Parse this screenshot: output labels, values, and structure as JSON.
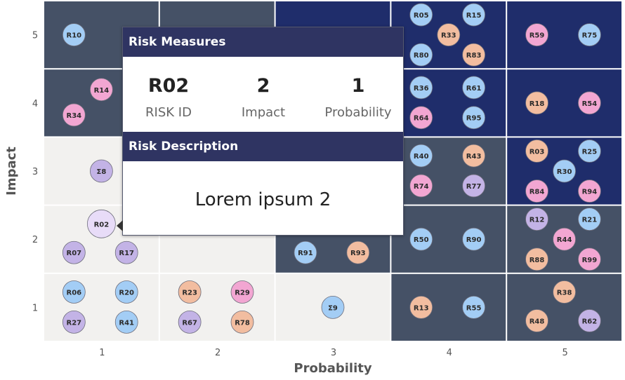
{
  "chart_data": {
    "type": "heatmap",
    "xlabel": "Probability",
    "ylabel": "Impact",
    "x_ticks": [
      "1",
      "2",
      "3",
      "4",
      "5"
    ],
    "y_ticks": [
      "1",
      "2",
      "3",
      "4",
      "5"
    ],
    "colors": {
      "light": "#f2f1ef",
      "slate": "#455166",
      "navy": "#1f2d6b",
      "blue": "#a3cdf5",
      "pink": "#f2a6d2",
      "orange": "#f2bda0",
      "purple": "#c3b3e6",
      "selected": "#e8dcf8"
    },
    "cells": [
      {
        "probability": 1,
        "impact": 5,
        "shade": "slate",
        "risks": [
          {
            "id": "R10",
            "color": "blue"
          }
        ]
      },
      {
        "probability": 2,
        "impact": 5,
        "shade": "slate",
        "risks": []
      },
      {
        "probability": 3,
        "impact": 5,
        "shade": "navy",
        "risks": []
      },
      {
        "probability": 4,
        "impact": 5,
        "shade": "navy",
        "risks": [
          {
            "id": "R05",
            "color": "blue"
          },
          {
            "id": "R15",
            "color": "blue"
          },
          {
            "id": "R33",
            "color": "orange"
          },
          {
            "id": "R80",
            "color": "blue"
          },
          {
            "id": "R83",
            "color": "orange"
          }
        ]
      },
      {
        "probability": 5,
        "impact": 5,
        "shade": "navy",
        "risks": [
          {
            "id": "R59",
            "color": "pink"
          },
          {
            "id": "R75",
            "color": "blue"
          }
        ]
      },
      {
        "probability": 1,
        "impact": 4,
        "shade": "slate",
        "risks": [
          {
            "id": "R14",
            "color": "pink"
          },
          {
            "id": "R34",
            "color": "pink"
          }
        ]
      },
      {
        "probability": 2,
        "impact": 4,
        "shade": "slate",
        "risks": []
      },
      {
        "probability": 3,
        "impact": 4,
        "shade": "navy",
        "risks": []
      },
      {
        "probability": 4,
        "impact": 4,
        "shade": "navy",
        "risks": [
          {
            "id": "R36",
            "color": "blue"
          },
          {
            "id": "R61",
            "color": "blue"
          },
          {
            "id": "R64",
            "color": "pink"
          },
          {
            "id": "R95",
            "color": "blue"
          }
        ]
      },
      {
        "probability": 5,
        "impact": 4,
        "shade": "navy",
        "risks": [
          {
            "id": "R18",
            "color": "orange"
          },
          {
            "id": "R54",
            "color": "pink"
          }
        ]
      },
      {
        "probability": 1,
        "impact": 3,
        "shade": "light",
        "risks": [
          {
            "id": "Σ8",
            "color": "purple"
          }
        ]
      },
      {
        "probability": 2,
        "impact": 3,
        "shade": "light",
        "risks": []
      },
      {
        "probability": 3,
        "impact": 3,
        "shade": "slate",
        "risks": []
      },
      {
        "probability": 4,
        "impact": 3,
        "shade": "slate",
        "risks": [
          {
            "id": "R40",
            "color": "blue"
          },
          {
            "id": "R43",
            "color": "orange"
          },
          {
            "id": "R74",
            "color": "pink"
          },
          {
            "id": "R77",
            "color": "purple"
          }
        ]
      },
      {
        "probability": 5,
        "impact": 3,
        "shade": "navy",
        "risks": [
          {
            "id": "R03",
            "color": "orange"
          },
          {
            "id": "R25",
            "color": "blue"
          },
          {
            "id": "R30",
            "color": "blue"
          },
          {
            "id": "R84",
            "color": "pink"
          },
          {
            "id": "R94",
            "color": "pink"
          }
        ]
      },
      {
        "probability": 1,
        "impact": 2,
        "shade": "light",
        "risks": [
          {
            "id": "R02",
            "color": "selected"
          },
          {
            "id": "R07",
            "color": "purple"
          },
          {
            "id": "R17",
            "color": "purple"
          }
        ]
      },
      {
        "probability": 2,
        "impact": 2,
        "shade": "light",
        "risks": []
      },
      {
        "probability": 3,
        "impact": 2,
        "shade": "slate",
        "risks": [
          {
            "id": "R91",
            "color": "blue"
          },
          {
            "id": "R93",
            "color": "orange"
          }
        ]
      },
      {
        "probability": 4,
        "impact": 2,
        "shade": "slate",
        "risks": [
          {
            "id": "R50",
            "color": "blue"
          },
          {
            "id": "R90",
            "color": "blue"
          }
        ]
      },
      {
        "probability": 5,
        "impact": 2,
        "shade": "slate",
        "risks": [
          {
            "id": "R12",
            "color": "purple"
          },
          {
            "id": "R21",
            "color": "blue"
          },
          {
            "id": "R44",
            "color": "pink"
          },
          {
            "id": "R88",
            "color": "orange"
          },
          {
            "id": "R99",
            "color": "pink"
          }
        ]
      },
      {
        "probability": 1,
        "impact": 1,
        "shade": "light",
        "risks": [
          {
            "id": "R06",
            "color": "blue"
          },
          {
            "id": "R20",
            "color": "blue"
          },
          {
            "id": "R27",
            "color": "purple"
          },
          {
            "id": "R41",
            "color": "blue"
          }
        ]
      },
      {
        "probability": 2,
        "impact": 1,
        "shade": "light",
        "risks": [
          {
            "id": "R23",
            "color": "orange"
          },
          {
            "id": "R29",
            "color": "pink"
          },
          {
            "id": "R67",
            "color": "purple"
          },
          {
            "id": "R78",
            "color": "orange"
          }
        ]
      },
      {
        "probability": 3,
        "impact": 1,
        "shade": "light",
        "risks": [
          {
            "id": "Σ9",
            "color": "blue"
          }
        ]
      },
      {
        "probability": 4,
        "impact": 1,
        "shade": "slate",
        "risks": [
          {
            "id": "R13",
            "color": "orange"
          },
          {
            "id": "R55",
            "color": "blue"
          }
        ]
      },
      {
        "probability": 5,
        "impact": 1,
        "shade": "slate",
        "risks": [
          {
            "id": "R38",
            "color": "orange"
          },
          {
            "id": "R48",
            "color": "orange"
          },
          {
            "id": "R62",
            "color": "purple"
          }
        ]
      }
    ]
  },
  "tooltip": {
    "measures_header": "Risk Measures",
    "risk_id_value": "R02",
    "risk_id_label": "RISK ID",
    "impact_value": "2",
    "impact_label": "Impact",
    "probability_value": "1",
    "probability_label": "Probability",
    "description_header": "Risk Description",
    "description": "Lorem ipsum 2"
  }
}
